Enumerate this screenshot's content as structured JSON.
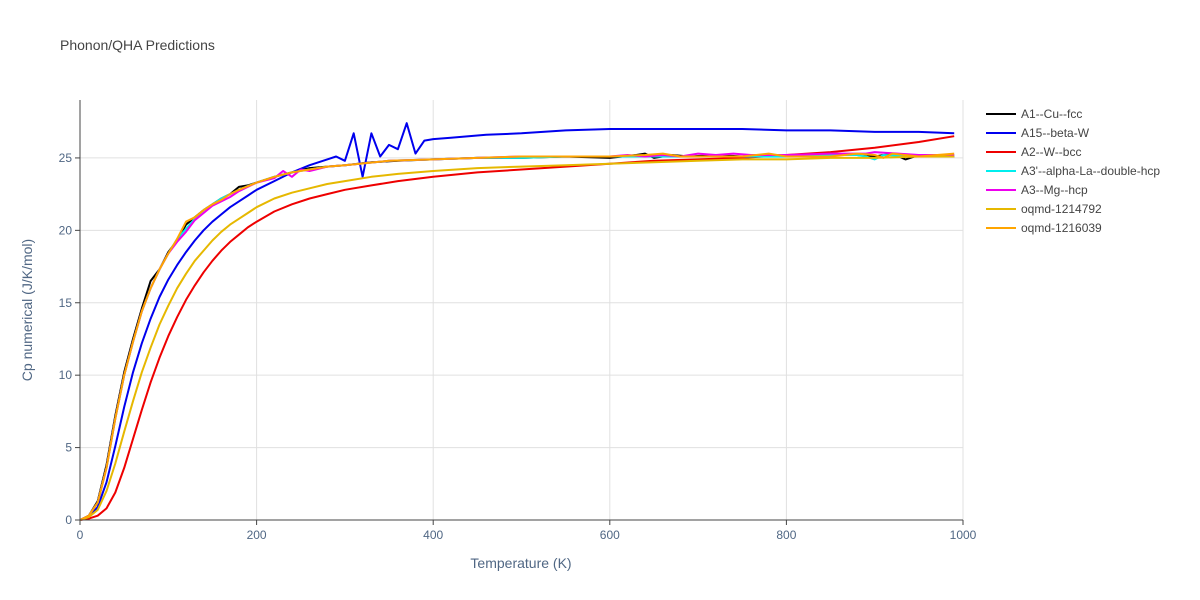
{
  "chart_data": {
    "type": "line",
    "title": "Phonon/QHA Predictions",
    "xlabel": "Temperature (K)",
    "ylabel": "Cp numerical (J/K/mol)",
    "xlim": [
      0,
      1000
    ],
    "ylim": [
      0,
      29
    ],
    "xticks": [
      0,
      200,
      400,
      600,
      800,
      1000
    ],
    "yticks": [
      0,
      5,
      10,
      15,
      20,
      25
    ],
    "grid": true,
    "legend_position": "right",
    "series": [
      {
        "name": "A1--Cu--fcc",
        "color": "#000000",
        "points": [
          [
            0,
            0
          ],
          [
            10,
            0.3
          ],
          [
            20,
            1.3
          ],
          [
            30,
            3.8
          ],
          [
            40,
            7.2
          ],
          [
            50,
            10.2
          ],
          [
            60,
            12.5
          ],
          [
            70,
            14.6
          ],
          [
            80,
            16.5
          ],
          [
            90,
            17.3
          ],
          [
            100,
            18.5
          ],
          [
            110,
            19.3
          ],
          [
            120,
            20.4
          ],
          [
            130,
            20.9
          ],
          [
            140,
            21.4
          ],
          [
            150,
            21.8
          ],
          [
            160,
            22.2
          ],
          [
            170,
            22.5
          ],
          [
            180,
            23.0
          ],
          [
            190,
            23.1
          ],
          [
            200,
            23.3
          ],
          [
            220,
            23.7
          ],
          [
            240,
            24.0
          ],
          [
            260,
            24.3
          ],
          [
            280,
            24.4
          ],
          [
            300,
            24.5
          ],
          [
            330,
            24.7
          ],
          [
            360,
            24.8
          ],
          [
            400,
            24.9
          ],
          [
            450,
            25.0
          ],
          [
            500,
            25.0
          ],
          [
            550,
            25.1
          ],
          [
            600,
            25.0
          ],
          [
            630,
            25.2
          ],
          [
            640,
            25.3
          ],
          [
            650,
            25.0
          ],
          [
            670,
            25.2
          ],
          [
            690,
            25.1
          ],
          [
            720,
            25.2
          ],
          [
            750,
            25.1
          ],
          [
            780,
            25.2
          ],
          [
            800,
            25.1
          ],
          [
            850,
            25.2
          ],
          [
            880,
            25.2
          ],
          [
            900,
            25.1
          ],
          [
            920,
            25.3
          ],
          [
            935,
            24.9
          ],
          [
            950,
            25.2
          ],
          [
            970,
            25.1
          ],
          [
            990,
            25.1
          ]
        ]
      },
      {
        "name": "A15--beta-W",
        "color": "#0000ee",
        "points": [
          [
            0,
            0
          ],
          [
            10,
            0.2
          ],
          [
            20,
            0.9
          ],
          [
            30,
            2.6
          ],
          [
            40,
            5.1
          ],
          [
            50,
            7.8
          ],
          [
            60,
            10.2
          ],
          [
            70,
            12.2
          ],
          [
            80,
            13.9
          ],
          [
            90,
            15.4
          ],
          [
            100,
            16.6
          ],
          [
            110,
            17.6
          ],
          [
            120,
            18.5
          ],
          [
            130,
            19.3
          ],
          [
            140,
            20.0
          ],
          [
            150,
            20.6
          ],
          [
            160,
            21.1
          ],
          [
            170,
            21.6
          ],
          [
            180,
            22.0
          ],
          [
            190,
            22.4
          ],
          [
            200,
            22.8
          ],
          [
            220,
            23.4
          ],
          [
            240,
            24.0
          ],
          [
            260,
            24.5
          ],
          [
            280,
            24.9
          ],
          [
            290,
            25.1
          ],
          [
            300,
            24.8
          ],
          [
            310,
            26.7
          ],
          [
            320,
            23.7
          ],
          [
            330,
            26.7
          ],
          [
            340,
            25.1
          ],
          [
            350,
            25.9
          ],
          [
            360,
            25.6
          ],
          [
            370,
            27.4
          ],
          [
            380,
            25.3
          ],
          [
            390,
            26.2
          ],
          [
            400,
            26.3
          ],
          [
            420,
            26.4
          ],
          [
            440,
            26.5
          ],
          [
            460,
            26.6
          ],
          [
            500,
            26.7
          ],
          [
            550,
            26.9
          ],
          [
            600,
            27.0
          ],
          [
            650,
            27.0
          ],
          [
            700,
            27.0
          ],
          [
            750,
            27.0
          ],
          [
            800,
            26.9
          ],
          [
            850,
            26.9
          ],
          [
            900,
            26.8
          ],
          [
            950,
            26.8
          ],
          [
            990,
            26.7
          ]
        ]
      },
      {
        "name": "A2--W--bcc",
        "color": "#ee0000",
        "points": [
          [
            0,
            0
          ],
          [
            10,
            0.1
          ],
          [
            20,
            0.3
          ],
          [
            30,
            0.8
          ],
          [
            40,
            1.9
          ],
          [
            50,
            3.6
          ],
          [
            60,
            5.6
          ],
          [
            70,
            7.6
          ],
          [
            80,
            9.5
          ],
          [
            90,
            11.2
          ],
          [
            100,
            12.7
          ],
          [
            110,
            14.0
          ],
          [
            120,
            15.2
          ],
          [
            130,
            16.2
          ],
          [
            140,
            17.1
          ],
          [
            150,
            17.9
          ],
          [
            160,
            18.6
          ],
          [
            170,
            19.2
          ],
          [
            180,
            19.7
          ],
          [
            190,
            20.2
          ],
          [
            200,
            20.6
          ],
          [
            220,
            21.3
          ],
          [
            240,
            21.8
          ],
          [
            260,
            22.2
          ],
          [
            280,
            22.5
          ],
          [
            300,
            22.8
          ],
          [
            330,
            23.1
          ],
          [
            360,
            23.4
          ],
          [
            400,
            23.7
          ],
          [
            450,
            24.0
          ],
          [
            500,
            24.2
          ],
          [
            550,
            24.4
          ],
          [
            600,
            24.6
          ],
          [
            650,
            24.8
          ],
          [
            700,
            24.9
          ],
          [
            750,
            25.0
          ],
          [
            800,
            25.2
          ],
          [
            850,
            25.4
          ],
          [
            900,
            25.7
          ],
          [
            950,
            26.1
          ],
          [
            990,
            26.5
          ]
        ]
      },
      {
        "name": "A3'--alpha-La--double-hcp",
        "color": "#00eeee",
        "points": [
          [
            0,
            0
          ],
          [
            10,
            0.3
          ],
          [
            20,
            1.2
          ],
          [
            30,
            3.6
          ],
          [
            40,
            7.0
          ],
          [
            50,
            10.0
          ],
          [
            60,
            12.3
          ],
          [
            70,
            14.4
          ],
          [
            80,
            16.0
          ],
          [
            90,
            17.3
          ],
          [
            100,
            18.4
          ],
          [
            110,
            19.4
          ],
          [
            120,
            20.1
          ],
          [
            130,
            20.8
          ],
          [
            140,
            21.4
          ],
          [
            150,
            21.8
          ],
          [
            160,
            22.2
          ],
          [
            170,
            22.5
          ],
          [
            180,
            22.8
          ],
          [
            200,
            23.3
          ],
          [
            220,
            23.7
          ],
          [
            240,
            24.0
          ],
          [
            260,
            24.2
          ],
          [
            280,
            24.4
          ],
          [
            300,
            24.5
          ],
          [
            350,
            24.8
          ],
          [
            400,
            24.9
          ],
          [
            450,
            25.0
          ],
          [
            500,
            25.0
          ],
          [
            550,
            25.1
          ],
          [
            600,
            25.1
          ],
          [
            650,
            25.1
          ],
          [
            700,
            25.1
          ],
          [
            750,
            25.1
          ],
          [
            800,
            25.1
          ],
          [
            850,
            25.2
          ],
          [
            880,
            25.2
          ],
          [
            890,
            25.1
          ],
          [
            900,
            24.9
          ],
          [
            910,
            25.2
          ],
          [
            950,
            25.1
          ],
          [
            990,
            25.2
          ]
        ]
      },
      {
        "name": "A3--Mg--hcp",
        "color": "#ee00ee",
        "points": [
          [
            0,
            0
          ],
          [
            10,
            0.3
          ],
          [
            20,
            1.2
          ],
          [
            30,
            3.6
          ],
          [
            40,
            7.0
          ],
          [
            50,
            10.0
          ],
          [
            60,
            12.3
          ],
          [
            70,
            14.4
          ],
          [
            80,
            16.0
          ],
          [
            90,
            17.3
          ],
          [
            100,
            18.4
          ],
          [
            110,
            19.2
          ],
          [
            120,
            19.9
          ],
          [
            130,
            20.7
          ],
          [
            140,
            21.2
          ],
          [
            150,
            21.7
          ],
          [
            160,
            22.0
          ],
          [
            170,
            22.3
          ],
          [
            180,
            22.7
          ],
          [
            190,
            23.0
          ],
          [
            200,
            23.3
          ],
          [
            220,
            23.6
          ],
          [
            230,
            24.1
          ],
          [
            240,
            23.7
          ],
          [
            250,
            24.2
          ],
          [
            260,
            24.1
          ],
          [
            280,
            24.4
          ],
          [
            300,
            24.5
          ],
          [
            350,
            24.8
          ],
          [
            400,
            24.9
          ],
          [
            450,
            25.0
          ],
          [
            500,
            25.1
          ],
          [
            550,
            25.1
          ],
          [
            600,
            25.1
          ],
          [
            620,
            25.2
          ],
          [
            640,
            25.1
          ],
          [
            660,
            25.2
          ],
          [
            680,
            25.1
          ],
          [
            700,
            25.3
          ],
          [
            720,
            25.2
          ],
          [
            740,
            25.3
          ],
          [
            760,
            25.2
          ],
          [
            800,
            25.2
          ],
          [
            850,
            25.3
          ],
          [
            890,
            25.3
          ],
          [
            900,
            25.4
          ],
          [
            950,
            25.2
          ],
          [
            990,
            25.2
          ]
        ]
      },
      {
        "name": "oqmd-1214792",
        "color": "#e6b800",
        "points": [
          [
            0,
            0
          ],
          [
            10,
            0.2
          ],
          [
            20,
            0.7
          ],
          [
            30,
            2.0
          ],
          [
            40,
            3.9
          ],
          [
            50,
            6.1
          ],
          [
            60,
            8.2
          ],
          [
            70,
            10.2
          ],
          [
            80,
            11.9
          ],
          [
            90,
            13.5
          ],
          [
            100,
            14.8
          ],
          [
            110,
            16.0
          ],
          [
            120,
            17.0
          ],
          [
            130,
            17.9
          ],
          [
            140,
            18.6
          ],
          [
            150,
            19.3
          ],
          [
            160,
            19.9
          ],
          [
            170,
            20.4
          ],
          [
            180,
            20.8
          ],
          [
            190,
            21.2
          ],
          [
            200,
            21.6
          ],
          [
            220,
            22.2
          ],
          [
            240,
            22.6
          ],
          [
            260,
            22.9
          ],
          [
            280,
            23.2
          ],
          [
            300,
            23.4
          ],
          [
            330,
            23.7
          ],
          [
            360,
            23.9
          ],
          [
            400,
            24.1
          ],
          [
            450,
            24.3
          ],
          [
            500,
            24.4
          ],
          [
            550,
            24.5
          ],
          [
            600,
            24.6
          ],
          [
            650,
            24.7
          ],
          [
            700,
            24.8
          ],
          [
            750,
            24.9
          ],
          [
            800,
            24.9
          ],
          [
            850,
            25.0
          ],
          [
            900,
            25.0
          ],
          [
            950,
            25.1
          ],
          [
            990,
            25.1
          ]
        ]
      },
      {
        "name": "oqmd-1216039",
        "color": "#ffa500",
        "points": [
          [
            0,
            0
          ],
          [
            10,
            0.3
          ],
          [
            20,
            1.2
          ],
          [
            30,
            3.6
          ],
          [
            40,
            7.0
          ],
          [
            50,
            10.0
          ],
          [
            60,
            12.3
          ],
          [
            70,
            14.4
          ],
          [
            80,
            16.0
          ],
          [
            90,
            17.3
          ],
          [
            100,
            18.4
          ],
          [
            110,
            19.4
          ],
          [
            120,
            20.6
          ],
          [
            130,
            20.9
          ],
          [
            140,
            21.4
          ],
          [
            150,
            21.8
          ],
          [
            160,
            22.1
          ],
          [
            170,
            22.5
          ],
          [
            180,
            22.8
          ],
          [
            200,
            23.3
          ],
          [
            220,
            23.7
          ],
          [
            240,
            24.0
          ],
          [
            260,
            24.2
          ],
          [
            280,
            24.4
          ],
          [
            300,
            24.5
          ],
          [
            350,
            24.8
          ],
          [
            400,
            24.9
          ],
          [
            450,
            25.0
          ],
          [
            500,
            25.1
          ],
          [
            550,
            25.1
          ],
          [
            600,
            25.1
          ],
          [
            640,
            25.2
          ],
          [
            660,
            25.3
          ],
          [
            680,
            25.1
          ],
          [
            700,
            25.1
          ],
          [
            750,
            25.1
          ],
          [
            780,
            25.3
          ],
          [
            800,
            25.1
          ],
          [
            850,
            25.1
          ],
          [
            880,
            25.3
          ],
          [
            900,
            25.2
          ],
          [
            910,
            25.0
          ],
          [
            920,
            25.3
          ],
          [
            950,
            25.1
          ],
          [
            990,
            25.3
          ]
        ]
      }
    ]
  }
}
